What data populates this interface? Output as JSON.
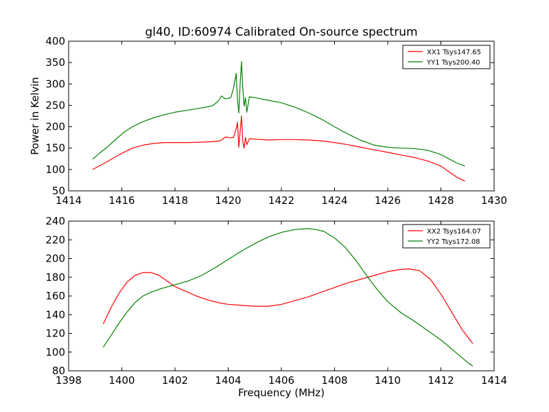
{
  "figure": {
    "title": "gl40, ID:60974 Calibrated On-source spectrum"
  },
  "chart_data": [
    {
      "type": "line",
      "title": "gl40, ID:60974 Calibrated On-source spectrum",
      "xlabel": "",
      "ylabel": "Power in Kelvin",
      "xlim": [
        1414,
        1430
      ],
      "ylim": [
        50,
        400
      ],
      "xticks": [
        1414,
        1416,
        1418,
        1420,
        1422,
        1424,
        1426,
        1428,
        1430
      ],
      "yticks": [
        50,
        100,
        150,
        200,
        250,
        300,
        350,
        400
      ],
      "grid": false,
      "legend_position": "top-right",
      "series": [
        {
          "name": "XX1 Tsys147.65",
          "color": "#ff0000",
          "x": [
            1414.9,
            1415.2,
            1415.5,
            1415.8,
            1416.1,
            1416.4,
            1416.8,
            1417.2,
            1417.6,
            1418.0,
            1418.5,
            1419.0,
            1419.4,
            1419.7,
            1419.9,
            1420.1,
            1420.2,
            1420.3,
            1420.35,
            1420.4,
            1420.45,
            1420.5,
            1420.55,
            1420.6,
            1420.65,
            1420.7,
            1420.8,
            1421.0,
            1421.5,
            1422.0,
            1422.5,
            1423.0,
            1423.5,
            1424.0,
            1424.5,
            1425.0,
            1425.5,
            1426.0,
            1426.5,
            1427.0,
            1427.5,
            1428.0,
            1428.3,
            1428.6,
            1428.9
          ],
          "y": [
            100,
            110,
            120,
            131,
            141,
            150,
            157,
            161,
            163,
            163,
            163,
            164,
            165,
            167,
            176,
            174,
            175,
            195,
            210,
            152,
            188,
            225,
            165,
            150,
            175,
            158,
            172,
            171,
            169,
            170,
            170,
            169,
            167,
            163,
            158,
            152,
            146,
            140,
            134,
            128,
            120,
            108,
            95,
            82,
            73
          ]
        },
        {
          "name": "YY1 Tsys200.40",
          "color": "#008000",
          "x": [
            1414.9,
            1415.2,
            1415.5,
            1415.8,
            1416.1,
            1416.4,
            1416.8,
            1417.2,
            1417.6,
            1418.0,
            1418.5,
            1419.0,
            1419.4,
            1419.6,
            1419.75,
            1419.9,
            1420.1,
            1420.2,
            1420.3,
            1420.35,
            1420.4,
            1420.45,
            1420.5,
            1420.55,
            1420.6,
            1420.65,
            1420.7,
            1420.8,
            1421.0,
            1421.5,
            1422.0,
            1422.5,
            1423.0,
            1423.5,
            1424.0,
            1424.5,
            1425.0,
            1425.5,
            1426.0,
            1426.5,
            1427.0,
            1427.5,
            1428.0,
            1428.3,
            1428.6,
            1428.9
          ],
          "y": [
            124,
            140,
            155,
            172,
            188,
            200,
            212,
            221,
            228,
            234,
            239,
            244,
            249,
            258,
            272,
            265,
            268,
            290,
            325,
            262,
            232,
            300,
            352,
            290,
            248,
            268,
            234,
            270,
            268,
            262,
            256,
            246,
            233,
            218,
            200,
            183,
            168,
            157,
            152,
            150,
            149,
            145,
            135,
            125,
            115,
            108
          ]
        }
      ]
    },
    {
      "type": "line",
      "title": "",
      "xlabel": "Frequency (MHz)",
      "ylabel": "",
      "xlim": [
        1398,
        1414
      ],
      "ylim": [
        80,
        240
      ],
      "xticks": [
        1398,
        1400,
        1402,
        1404,
        1406,
        1408,
        1410,
        1412,
        1414
      ],
      "yticks": [
        80,
        100,
        120,
        140,
        160,
        180,
        200,
        220,
        240
      ],
      "grid": false,
      "legend_position": "top-right",
      "series": [
        {
          "name": "XX2 Tsys164.07",
          "color": "#ff0000",
          "x": [
            1399.3,
            1399.6,
            1399.9,
            1400.2,
            1400.5,
            1400.8,
            1401.1,
            1401.4,
            1401.7,
            1402.0,
            1402.4,
            1402.8,
            1403.2,
            1403.6,
            1404.0,
            1404.5,
            1405.0,
            1405.5,
            1406.0,
            1406.5,
            1407.0,
            1407.5,
            1408.0,
            1408.5,
            1409.0,
            1409.5,
            1410.0,
            1410.4,
            1410.8,
            1411.2,
            1411.6,
            1412.0,
            1412.4,
            1412.8,
            1413.2
          ],
          "y": [
            130,
            148,
            163,
            175,
            182,
            185,
            185,
            182,
            176,
            170,
            165,
            160,
            156,
            153,
            151,
            150,
            149,
            149,
            151,
            155,
            159,
            164,
            169,
            174,
            178,
            182,
            186,
            188,
            189,
            187,
            178,
            162,
            143,
            124,
            109
          ]
        },
        {
          "name": "YY2 Tsys172.08",
          "color": "#008000",
          "x": [
            1399.3,
            1399.6,
            1399.9,
            1400.2,
            1400.5,
            1400.8,
            1401.1,
            1401.5,
            1402.0,
            1402.5,
            1403.0,
            1403.5,
            1404.0,
            1404.5,
            1405.0,
            1405.5,
            1406.0,
            1406.5,
            1407.0,
            1407.3,
            1407.6,
            1408.0,
            1408.4,
            1408.8,
            1409.2,
            1409.6,
            1410.0,
            1410.5,
            1411.0,
            1411.5,
            1412.0,
            1412.5,
            1413.0,
            1413.2
          ],
          "y": [
            105,
            118,
            131,
            143,
            153,
            160,
            164,
            168,
            172,
            176,
            182,
            190,
            199,
            208,
            216,
            223,
            228,
            231,
            232,
            231,
            229,
            222,
            212,
            198,
            182,
            167,
            154,
            142,
            133,
            123,
            113,
            101,
            89,
            85
          ]
        }
      ]
    }
  ]
}
